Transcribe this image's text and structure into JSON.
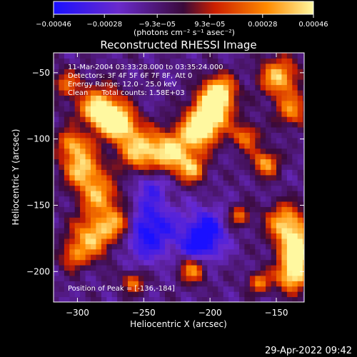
{
  "chart_data": {
    "type": "heatmap",
    "title": "Reconstructed RHESSI Image",
    "xlabel": "Heliocentric X (arcsec)",
    "ylabel": "Heliocentric Y (arcsec)",
    "xlim": [
      -318,
      -129
    ],
    "ylim": [
      -223,
      -35
    ],
    "x_ticks": [
      -300,
      -250,
      -200,
      -150
    ],
    "y_ticks": [
      -200,
      -150,
      -100,
      -50
    ],
    "x_tick_labels": [
      "−300",
      "−250",
      "−200",
      "−150"
    ],
    "y_tick_labels": [
      "−200",
      "−150",
      "−100",
      "−50"
    ],
    "colorbar": {
      "range": [
        -0.00046,
        0.00046
      ],
      "ticks": [
        -0.00046,
        -0.00028,
        -9.3e-05,
        9.3e-05,
        0.00028,
        0.00046
      ],
      "tick_labels": [
        "−0.00046",
        "−0.00028",
        "−9.3e−05",
        "9.3e−05",
        "0.00028",
        "0.00046"
      ],
      "units_label": "(photons cm⁻² s⁻¹ asec⁻²)",
      "colormap": [
        "#1a10ff",
        "#6a2acc",
        "#3a0a3a",
        "#cc1f00",
        "#ff8a00",
        "#fff8a0"
      ]
    },
    "annotations": [
      "11-Mar-2004 03:33:28.000 to 03:35:24.000",
      "Detectors: 3F 4F 5F 6F 7F 8F, Att 0",
      "Energy Range: 12.0 - 25.0 keV",
      "Clean      Total counts: 1.58E+03"
    ],
    "peak_label": "Position of Peak = [-136,-184]",
    "peak": [
      -136,
      -184
    ],
    "grid": false
  },
  "footer": {
    "timestamp": "29-Apr-2022 09:42"
  },
  "colors": {
    "background": "#000000",
    "text": "#ffffff"
  }
}
